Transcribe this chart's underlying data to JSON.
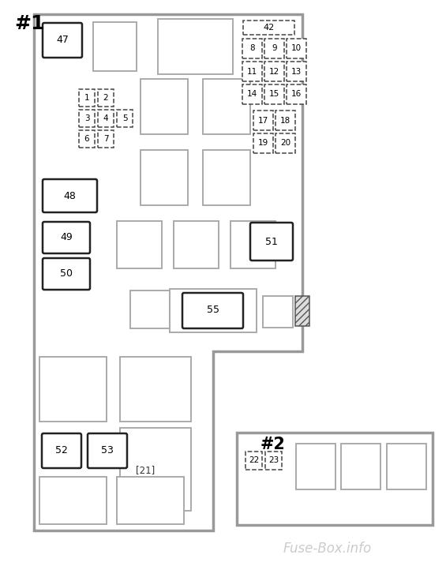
{
  "bg": "#ffffff",
  "oc": "#999999",
  "rc": "#aaaaaa",
  "lc": "#222222",
  "fc": "#444444",
  "title1": "#1",
  "title2": "#2",
  "wm": "Fuse-Box.info"
}
